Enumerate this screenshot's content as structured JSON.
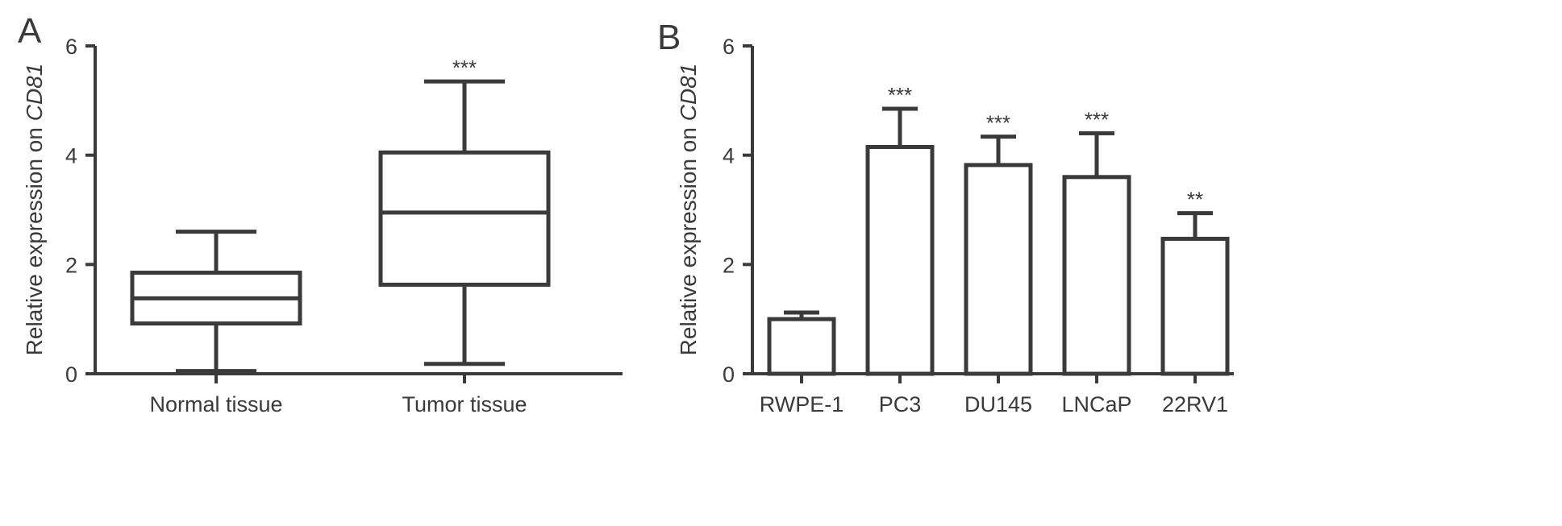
{
  "panels": [
    {
      "label": "A",
      "chart_data": {
        "type": "box",
        "categories": [
          "Normal tissue",
          "Tumor tissue"
        ],
        "boxes": [
          {
            "min": 0.05,
            "q1": 0.92,
            "median": 1.38,
            "q3": 1.85,
            "max": 2.6,
            "sig": ""
          },
          {
            "min": 0.18,
            "q1": 1.63,
            "median": 2.95,
            "q3": 4.05,
            "max": 5.35,
            "sig": "***"
          }
        ],
        "ylabel_prefix": "Relative expression on ",
        "ylabel_gene": "CD81",
        "ylim": [
          0,
          6
        ],
        "yticks": [
          "0",
          "2",
          "4",
          "6"
        ],
        "grid": false
      }
    },
    {
      "label": "B",
      "chart_data": {
        "type": "bar",
        "categories": [
          "RWPE-1",
          "PC3",
          "DU145",
          "LNCaP",
          "22RV1"
        ],
        "values": [
          1.0,
          4.15,
          3.82,
          3.6,
          2.47
        ],
        "errors": [
          0.12,
          0.7,
          0.52,
          0.8,
          0.47
        ],
        "sig": [
          "",
          "***",
          "***",
          "***",
          "**"
        ],
        "ylabel_prefix": "Relative expression on ",
        "ylabel_gene": "CD81",
        "ylim": [
          0,
          6
        ],
        "yticks": [
          "0",
          "2",
          "4",
          "6"
        ],
        "grid": false
      }
    }
  ]
}
